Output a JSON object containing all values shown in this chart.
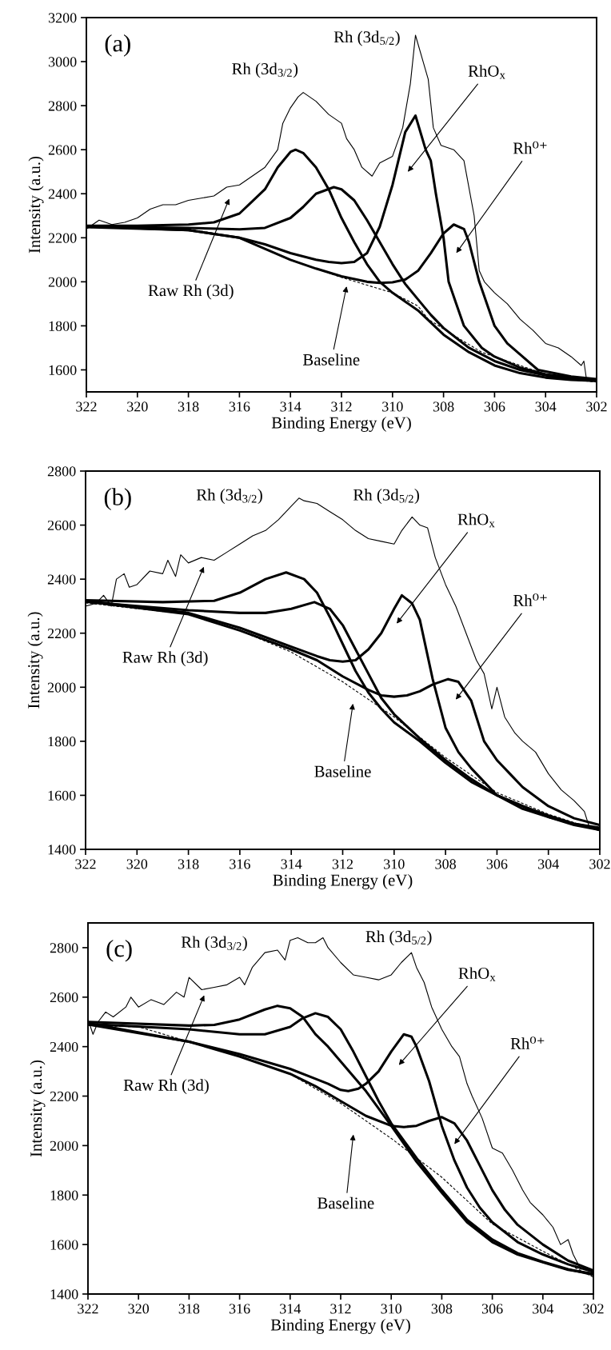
{
  "chart_data": [
    {
      "type": "line",
      "title": "(a)",
      "xlabel": "Binding Energy (eV)",
      "ylabel": "Intensity (a.u.)",
      "xlim": [
        322,
        302
      ],
      "ylim": [
        1500,
        3200
      ],
      "xticks": [
        322,
        320,
        318,
        316,
        314,
        312,
        310,
        308,
        306,
        304,
        302
      ],
      "yticks": [
        1600,
        1800,
        2000,
        2200,
        2400,
        2600,
        2800,
        3000,
        3200
      ],
      "series": [
        {
          "color": "#000000",
          "x": [
            322,
            321.5,
            321,
            320.5,
            320,
            319.5,
            319,
            318.5,
            318,
            317.5,
            317,
            316.5,
            316,
            315.5,
            315,
            314.5,
            314.3,
            314,
            313.7,
            313.5,
            313,
            312.5,
            312,
            311.8,
            311.5,
            311.2,
            310.8,
            310.5,
            310,
            309.6,
            309.3,
            309.1,
            308.8,
            308.6,
            308.4,
            308.1,
            307.6,
            307.2,
            306.8,
            306.6,
            306.4,
            306,
            305.5,
            305,
            304.5,
            304,
            303.5,
            303,
            302.6,
            302.5,
            302.4,
            302.2
          ],
          "values": [
            2240,
            2280,
            2260,
            2270,
            2290,
            2330,
            2350,
            2350,
            2370,
            2380,
            2390,
            2430,
            2440,
            2480,
            2520,
            2600,
            2720,
            2790,
            2840,
            2860,
            2820,
            2760,
            2720,
            2650,
            2600,
            2520,
            2480,
            2540,
            2570,
            2700,
            2900,
            3120,
            3000,
            2920,
            2700,
            2620,
            2600,
            2550,
            2300,
            2050,
            2000,
            1950,
            1900,
            1830,
            1780,
            1720,
            1700,
            1660,
            1620,
            1640,
            1560,
            1550
          ]
        },
        {
          "color": "#000000",
          "line_style": "dashed",
          "x": [
            322,
            320,
            318,
            316,
            314,
            312,
            310,
            309,
            308.6,
            307.5,
            306.5,
            305,
            304,
            303,
            302
          ],
          "values": [
            2246,
            2248,
            2240,
            2200,
            2100,
            2020,
            1950,
            1890,
            1830,
            1750,
            1680,
            1620,
            1580,
            1555,
            1545
          ]
        },
        {
          "color": "#000000",
          "x": [
            322,
            320,
            318,
            317,
            316,
            315,
            314.5,
            314,
            313.8,
            313.5,
            313,
            312.5,
            312,
            311.5,
            311,
            310.5,
            310,
            309,
            308,
            307,
            306,
            305,
            304,
            303,
            302
          ],
          "values": [
            2255,
            2255,
            2260,
            2270,
            2310,
            2420,
            2520,
            2590,
            2600,
            2585,
            2520,
            2420,
            2290,
            2180,
            2080,
            2000,
            1950,
            1870,
            1760,
            1680,
            1620,
            1585,
            1565,
            1555,
            1550
          ]
        },
        {
          "color": "#000000",
          "x": [
            322,
            318,
            316,
            315,
            314,
            313.5,
            313,
            312.3,
            312,
            311.5,
            311,
            310.5,
            310,
            309.5,
            309,
            308.5,
            308,
            307,
            306,
            305,
            304,
            303,
            302
          ],
          "values": [
            2250,
            2245,
            2238,
            2245,
            2290,
            2340,
            2400,
            2430,
            2420,
            2370,
            2280,
            2180,
            2080,
            1990,
            1920,
            1850,
            1790,
            1700,
            1640,
            1600,
            1575,
            1558,
            1550
          ]
        },
        {
          "color": "#000000",
          "x": [
            322,
            318,
            316,
            315,
            314,
            313,
            312.5,
            312,
            311.5,
            311,
            310.5,
            310,
            309.5,
            309.1,
            308.7,
            308.5,
            308.3,
            308,
            307.8,
            307.5,
            307.2,
            306.5,
            306,
            305,
            304,
            303,
            302
          ],
          "values": [
            2252,
            2235,
            2200,
            2170,
            2130,
            2100,
            2090,
            2085,
            2090,
            2130,
            2250,
            2440,
            2680,
            2755,
            2600,
            2550,
            2400,
            2200,
            2000,
            1900,
            1800,
            1700,
            1660,
            1610,
            1580,
            1565,
            1555
          ]
        },
        {
          "color": "#000000",
          "x": [
            322,
            318,
            316,
            315,
            314,
            313,
            312,
            311,
            310.5,
            310,
            309.5,
            309,
            308.5,
            308,
            307.6,
            307.2,
            307,
            306.6,
            306,
            305.5,
            305,
            304.3,
            303,
            302
          ],
          "values": [
            2248,
            2235,
            2200,
            2150,
            2100,
            2060,
            2025,
            2000,
            1995,
            1998,
            2010,
            2050,
            2130,
            2220,
            2260,
            2240,
            2180,
            2000,
            1800,
            1720,
            1670,
            1600,
            1570,
            1558
          ]
        }
      ],
      "annotations": [
        "Rh (3d$_{3/2}$)",
        "Rh (3d$_{5/2}$)",
        "Raw Rh (3d)",
        "Baseline",
        "RhO$_{x}$",
        "Rh⁰⁺"
      ]
    },
    {
      "type": "line",
      "title": "(b)",
      "xlabel": "Binding Energy (eV)",
      "ylabel": "Intensity (a.u.)",
      "xlim": [
        322,
        302
      ],
      "ylim": [
        1400,
        2800
      ],
      "xticks": [
        322,
        320,
        318,
        316,
        314,
        312,
        310,
        308,
        306,
        304,
        302
      ],
      "yticks": [
        1400,
        1600,
        1800,
        2000,
        2200,
        2400,
        2600,
        2800
      ],
      "series": [
        {
          "color": "#000000",
          "x": [
            322,
            321.6,
            321.3,
            321,
            320.8,
            320.5,
            320.3,
            320,
            319.5,
            319,
            318.8,
            318.5,
            318.3,
            318,
            317.5,
            317,
            316.5,
            316,
            315.5,
            315,
            314.5,
            314,
            313.7,
            313.5,
            313,
            312.5,
            312,
            311.5,
            311,
            310.5,
            310,
            309.7,
            309.3,
            309,
            308.7,
            308.4,
            308,
            307.6,
            307.2,
            306.8,
            306.5,
            306.2,
            306,
            305.7,
            305.3,
            305,
            304.5,
            304,
            303.5,
            303,
            302.6,
            302.4
          ],
          "values": [
            2300,
            2310,
            2340,
            2300,
            2400,
            2420,
            2370,
            2380,
            2430,
            2420,
            2470,
            2410,
            2490,
            2460,
            2480,
            2470,
            2500,
            2530,
            2560,
            2580,
            2620,
            2670,
            2700,
            2690,
            2680,
            2650,
            2620,
            2580,
            2550,
            2540,
            2530,
            2580,
            2630,
            2600,
            2590,
            2480,
            2380,
            2300,
            2200,
            2100,
            2050,
            1920,
            2000,
            1890,
            1830,
            1800,
            1760,
            1680,
            1620,
            1580,
            1540,
            1480
          ]
        },
        {
          "color": "#000000",
          "line_style": "dashed",
          "x": [
            322,
            318,
            316,
            314,
            312,
            310,
            308,
            306,
            304,
            302
          ],
          "values": [
            2312,
            2270,
            2210,
            2130,
            2020,
            1890,
            1740,
            1610,
            1530,
            1468
          ]
        },
        {
          "color": "#000000",
          "x": [
            322,
            319,
            317,
            316,
            315,
            314.2,
            313.5,
            313,
            312.5,
            312,
            311.5,
            311,
            310.5,
            310,
            309,
            308,
            307,
            306,
            305,
            304,
            303,
            302
          ],
          "values": [
            2322,
            2315,
            2320,
            2350,
            2400,
            2425,
            2400,
            2350,
            2260,
            2160,
            2060,
            1980,
            1920,
            1870,
            1800,
            1720,
            1650,
            1600,
            1560,
            1520,
            1490,
            1472
          ]
        },
        {
          "color": "#000000",
          "x": [
            322,
            318,
            316,
            315,
            314,
            313.1,
            312.5,
            312,
            311.5,
            311,
            310.5,
            310,
            309,
            308,
            307,
            306,
            305,
            304,
            303,
            302
          ],
          "values": [
            2316,
            2285,
            2275,
            2275,
            2290,
            2315,
            2290,
            2230,
            2140,
            2050,
            1960,
            1900,
            1810,
            1730,
            1660,
            1600,
            1560,
            1525,
            1495,
            1477
          ]
        },
        {
          "color": "#000000",
          "x": [
            322,
            318,
            316,
            315,
            314,
            313,
            312.5,
            312,
            311.5,
            311,
            310.5,
            310,
            309.7,
            309.3,
            309,
            308.5,
            308,
            307.5,
            307,
            306,
            305,
            304,
            303,
            302
          ],
          "values": [
            2320,
            2275,
            2220,
            2185,
            2150,
            2115,
            2100,
            2095,
            2100,
            2140,
            2200,
            2290,
            2340,
            2310,
            2250,
            2030,
            1850,
            1760,
            1700,
            1600,
            1550,
            1520,
            1495,
            1480
          ]
        },
        {
          "color": "#000000",
          "x": [
            322,
            318,
            316,
            314,
            313,
            312,
            311,
            310.5,
            310,
            309.5,
            309,
            308.5,
            307.9,
            307.5,
            307,
            306.5,
            306,
            305.5,
            305,
            304,
            303,
            302
          ],
          "values": [
            2318,
            2270,
            2210,
            2140,
            2100,
            2040,
            1990,
            1970,
            1965,
            1970,
            1985,
            2010,
            2030,
            2020,
            1950,
            1800,
            1730,
            1680,
            1630,
            1560,
            1515,
            1490
          ]
        }
      ],
      "annotations": [
        "Rh (3d$_{3/2}$)",
        "Rh (3d$_{5/2}$)",
        "Raw Rh (3d)",
        "Baseline",
        "RhO$_{x}$",
        "Rh⁰⁺"
      ]
    },
    {
      "type": "line",
      "title": "(c)",
      "xlabel": "Binding Energy (eV)",
      "ylabel": "Intensity (a.u.)",
      "xlim": [
        322,
        302
      ],
      "ylim": [
        1400,
        2900
      ],
      "xticks": [
        322,
        320,
        318,
        316,
        314,
        312,
        310,
        308,
        306,
        304,
        302
      ],
      "yticks": [
        1400,
        1600,
        1800,
        2000,
        2200,
        2400,
        2600,
        2800
      ],
      "series": [
        {
          "color": "#000000",
          "x": [
            322,
            321.8,
            321.6,
            321.3,
            321,
            320.5,
            320.3,
            320,
            319.5,
            319,
            318.5,
            318.2,
            318,
            317.5,
            317,
            316.5,
            316,
            315.8,
            315.5,
            315,
            314.5,
            314.2,
            314,
            313.7,
            313.3,
            313,
            312.7,
            312.5,
            312,
            311.5,
            311,
            310.5,
            310,
            309.6,
            309.2,
            309,
            308.7,
            308.4,
            308,
            307.6,
            307.3,
            307,
            306.8,
            306.4,
            306,
            305.6,
            305.2,
            304.8,
            304.5,
            304,
            303.6,
            303.3,
            303,
            302.8,
            302.5
          ],
          "values": [
            2510,
            2450,
            2500,
            2540,
            2520,
            2560,
            2600,
            2560,
            2590,
            2570,
            2620,
            2600,
            2680,
            2630,
            2640,
            2650,
            2680,
            2650,
            2720,
            2780,
            2790,
            2750,
            2830,
            2840,
            2820,
            2820,
            2840,
            2800,
            2740,
            2690,
            2680,
            2670,
            2690,
            2740,
            2780,
            2720,
            2660,
            2560,
            2470,
            2400,
            2360,
            2250,
            2200,
            2110,
            1990,
            1970,
            1900,
            1820,
            1770,
            1720,
            1670,
            1600,
            1620,
            1560,
            1500
          ]
        },
        {
          "color": "#000000",
          "line_style": "dashed",
          "x": [
            322,
            320,
            318,
            316,
            314,
            312,
            310,
            308,
            306,
            304,
            302
          ],
          "values": [
            2485,
            2480,
            2420,
            2360,
            2289,
            2171,
            2029,
            1872,
            1683,
            1573,
            1468
          ]
        },
        {
          "color": "#000000",
          "x": [
            322,
            318,
            317,
            316,
            315,
            314.5,
            314,
            313.5,
            313,
            312.5,
            312,
            311,
            310,
            309,
            308,
            307,
            306,
            305,
            304,
            303,
            302
          ],
          "values": [
            2500,
            2485,
            2488,
            2510,
            2550,
            2565,
            2555,
            2520,
            2450,
            2400,
            2340,
            2220,
            2080,
            1935,
            1810,
            1690,
            1610,
            1560,
            1528,
            1498,
            1482
          ]
        },
        {
          "color": "#000000",
          "x": [
            322,
            318,
            316,
            315,
            314,
            313.5,
            313,
            312.5,
            312,
            311.5,
            311,
            310.5,
            310,
            309,
            308,
            307,
            306,
            305,
            304,
            303,
            302
          ],
          "values": [
            2492,
            2470,
            2450,
            2450,
            2480,
            2515,
            2535,
            2520,
            2470,
            2380,
            2280,
            2180,
            2090,
            1950,
            1820,
            1700,
            1620,
            1565,
            1530,
            1500,
            1478
          ]
        },
        {
          "color": "#000000",
          "x": [
            322,
            318,
            316,
            315,
            314,
            313,
            312.5,
            312,
            311.7,
            311.3,
            311,
            310.5,
            310,
            309.5,
            309.2,
            309,
            308.5,
            308,
            307.5,
            307,
            306.5,
            306,
            305,
            304,
            303,
            302
          ],
          "values": [
            2495,
            2420,
            2370,
            2340,
            2310,
            2270,
            2250,
            2225,
            2220,
            2230,
            2250,
            2300,
            2380,
            2450,
            2440,
            2400,
            2260,
            2080,
            1940,
            1830,
            1750,
            1690,
            1610,
            1560,
            1520,
            1490
          ]
        },
        {
          "color": "#000000",
          "x": [
            322,
            318,
            316,
            314,
            313,
            312,
            311,
            310,
            309.5,
            309,
            308.5,
            308,
            307.5,
            307,
            306.5,
            306,
            305.5,
            305,
            304,
            303,
            302
          ],
          "values": [
            2490,
            2420,
            2360,
            2290,
            2240,
            2180,
            2120,
            2080,
            2075,
            2080,
            2100,
            2115,
            2090,
            2020,
            1920,
            1820,
            1740,
            1680,
            1600,
            1535,
            1495
          ]
        }
      ],
      "annotations": [
        "Rh (3d$_{3/2}$)",
        "Rh (3d$_{5/2}$)",
        "Raw Rh (3d)",
        "Baseline",
        "RhO$_{x}$",
        "Rh⁰⁺"
      ]
    }
  ]
}
